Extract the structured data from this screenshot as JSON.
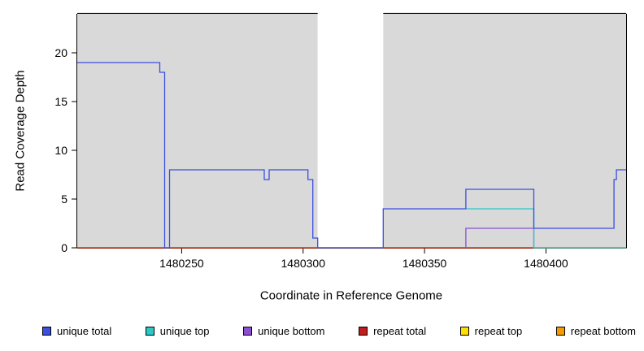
{
  "chart_data": {
    "type": "line",
    "title": "",
    "xlabel": "Coordinate in Reference Genome",
    "ylabel": "Read Coverage Depth",
    "xlim": [
      1480207,
      1480433
    ],
    "ylim": [
      0,
      24
    ],
    "x_ticks": [
      1480250,
      1480300,
      1480350,
      1480400
    ],
    "y_ticks": [
      0,
      5,
      10,
      15,
      20
    ],
    "grid": false,
    "legend_position": "bottom",
    "regions": [
      {
        "x0": 1480207,
        "x1": 1480306,
        "color": "#d9d9d9",
        "gap": false
      },
      {
        "x0": 1480306,
        "x1": 1480333,
        "color": "#ffffff",
        "gap": true
      },
      {
        "x0": 1480333,
        "x1": 1480433,
        "color": "#d9d9d9",
        "gap": false
      }
    ],
    "series": [
      {
        "name": "repeat top",
        "color": "#ffdf00",
        "points": [
          [
            1480207,
            0
          ],
          [
            1480433,
            0
          ]
        ]
      },
      {
        "name": "repeat bottom",
        "color": "#f59b00",
        "points": [
          [
            1480207,
            0
          ],
          [
            1480433,
            0
          ]
        ]
      },
      {
        "name": "repeat total",
        "color": "#c41c1c",
        "points": [
          [
            1480207,
            0
          ],
          [
            1480433,
            0
          ]
        ]
      },
      {
        "name": "unique bottom",
        "color": "#8c4fd0",
        "points": [
          [
            1480367,
            0
          ],
          [
            1480367,
            2
          ],
          [
            1480395,
            2
          ],
          [
            1480395,
            0
          ]
        ]
      },
      {
        "name": "unique top",
        "color": "#2bc8c8",
        "points": [
          [
            1480367,
            4
          ],
          [
            1480395,
            4
          ],
          [
            1480395,
            0
          ],
          [
            1480433,
            0
          ]
        ]
      },
      {
        "name": "unique total",
        "color": "#3b4fe0",
        "points": [
          [
            1480207,
            19
          ],
          [
            1480241,
            19
          ],
          [
            1480241,
            18
          ],
          [
            1480243,
            18
          ],
          [
            1480243,
            0
          ],
          [
            1480245,
            0
          ],
          [
            1480245,
            8
          ],
          [
            1480284,
            8
          ],
          [
            1480284,
            7
          ],
          [
            1480286,
            7
          ],
          [
            1480286,
            8
          ],
          [
            1480302,
            8
          ],
          [
            1480302,
            7
          ],
          [
            1480304,
            7
          ],
          [
            1480304,
            1
          ],
          [
            1480306,
            1
          ],
          [
            1480306,
            0
          ],
          [
            1480333,
            0
          ],
          [
            1480333,
            4
          ],
          [
            1480367,
            4
          ],
          [
            1480367,
            6
          ],
          [
            1480395,
            6
          ],
          [
            1480395,
            2
          ],
          [
            1480428,
            2
          ],
          [
            1480428,
            7
          ],
          [
            1480429,
            7
          ],
          [
            1480429,
            8
          ],
          [
            1480433,
            8
          ]
        ]
      }
    ],
    "legend": [
      {
        "label": "unique total",
        "color": "#3b4fe0"
      },
      {
        "label": "unique top",
        "color": "#2bc8c8"
      },
      {
        "label": "unique bottom",
        "color": "#8c4fd0"
      },
      {
        "label": "repeat total",
        "color": "#c41c1c"
      },
      {
        "label": "repeat top",
        "color": "#ffdf00"
      },
      {
        "label": "repeat bottom",
        "color": "#f59b00"
      }
    ]
  }
}
